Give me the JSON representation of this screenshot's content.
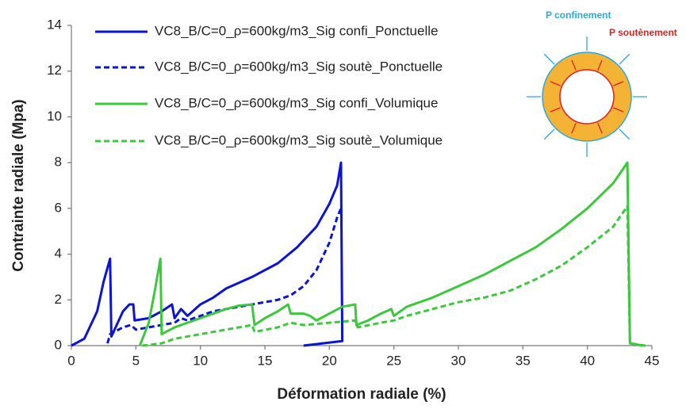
{
  "chart_data": {
    "type": "line",
    "x_label": "Déformation radiale (%)",
    "y_label": "Contrainte radiale (Mpa)",
    "xlim": [
      0,
      45
    ],
    "xticks": [
      0,
      5,
      10,
      15,
      20,
      25,
      30,
      35,
      40,
      45
    ],
    "ylim": [
      0,
      14
    ],
    "yticks": [
      0,
      2,
      4,
      6,
      8,
      10,
      12,
      14
    ],
    "grid": false,
    "legend": "upper left",
    "annotations": [
      "P confinement",
      "P soutènement"
    ],
    "series": [
      {
        "name": "VC8_B/C=0_ρ=600kg/m3_Sig confi_Ponctuelle",
        "color": "#0a14d2",
        "style": "solid",
        "x": [
          0,
          1,
          2,
          2.5,
          3.0,
          3.1,
          4,
          4.5,
          4.8,
          4.9,
          6,
          7,
          7.8,
          8,
          8.5,
          9,
          10,
          11,
          12,
          14,
          16,
          17.5,
          19,
          20,
          20.6,
          20.9,
          21.0,
          18
        ],
        "values": [
          0,
          0.3,
          1.5,
          2.8,
          3.8,
          0.4,
          1.5,
          1.8,
          1.8,
          1.1,
          1.2,
          1.5,
          1.8,
          1.2,
          1.6,
          1.3,
          1.8,
          2.1,
          2.5,
          3.0,
          3.6,
          4.3,
          5.2,
          6.2,
          7.0,
          8.0,
          0.2,
          0
        ]
      },
      {
        "name": "VC8_B/C=0_ρ=600kg/m3_Sig soutè_Ponctuelle",
        "color": "#0a14d2",
        "style": "dashed",
        "x": [
          2.8,
          3.0,
          4,
          4.6,
          5,
          6,
          7,
          8,
          8.5,
          9,
          10,
          11,
          12,
          13,
          14,
          15,
          16,
          17,
          18,
          19,
          20,
          20.6,
          20.9
        ],
        "values": [
          0.1,
          0.5,
          0.8,
          0.9,
          0.7,
          0.8,
          0.9,
          1.0,
          1.2,
          1.1,
          1.3,
          1.5,
          1.6,
          1.7,
          1.8,
          1.9,
          2.0,
          2.2,
          2.6,
          3.3,
          4.5,
          5.6,
          6.0
        ]
      },
      {
        "name": "VC8_B/C=0_ρ=600kg/m3_Sig confi_Volumique",
        "color": "#3cc83c",
        "style": "solid",
        "x": [
          5.3,
          6,
          6.5,
          6.9,
          7.0,
          8,
          9,
          10,
          11,
          12,
          13,
          14,
          14.2,
          15,
          16,
          16.8,
          17,
          18,
          18.5,
          19,
          20,
          21,
          22,
          22.1,
          23,
          24,
          24.8,
          25,
          26,
          28,
          30,
          32,
          34,
          36,
          38,
          40,
          42,
          43.1,
          43.3,
          44.3
        ],
        "values": [
          0,
          1.0,
          2.5,
          3.8,
          0.5,
          0.8,
          1.0,
          1.2,
          1.4,
          1.6,
          1.75,
          1.8,
          0.9,
          1.2,
          1.5,
          1.8,
          1.4,
          1.4,
          1.3,
          1.1,
          1.4,
          1.7,
          1.8,
          0.9,
          1.1,
          1.4,
          1.6,
          1.3,
          1.7,
          2.1,
          2.6,
          3.1,
          3.7,
          4.3,
          5.1,
          6.0,
          7.1,
          8.0,
          0.1,
          0
        ]
      },
      {
        "name": "VC8_B/C=0_ρ=600kg/m3_Sig soutè_Volumique",
        "color": "#3cc83c",
        "style": "dashed",
        "x": [
          5.5,
          7,
          8,
          10,
          12,
          14,
          14.2,
          16,
          17,
          18,
          20,
          22,
          22.2,
          24,
          25,
          26,
          28,
          30,
          32,
          34,
          36,
          38,
          40,
          42,
          43.1,
          43.3,
          44.5
        ],
        "values": [
          0,
          0.1,
          0.3,
          0.5,
          0.7,
          0.9,
          0.6,
          0.8,
          1.0,
          0.9,
          1.0,
          1.1,
          0.8,
          1.0,
          1.1,
          1.3,
          1.6,
          1.9,
          2.1,
          2.4,
          2.9,
          3.5,
          4.3,
          5.2,
          6.1,
          0.1,
          0
        ]
      }
    ]
  }
}
